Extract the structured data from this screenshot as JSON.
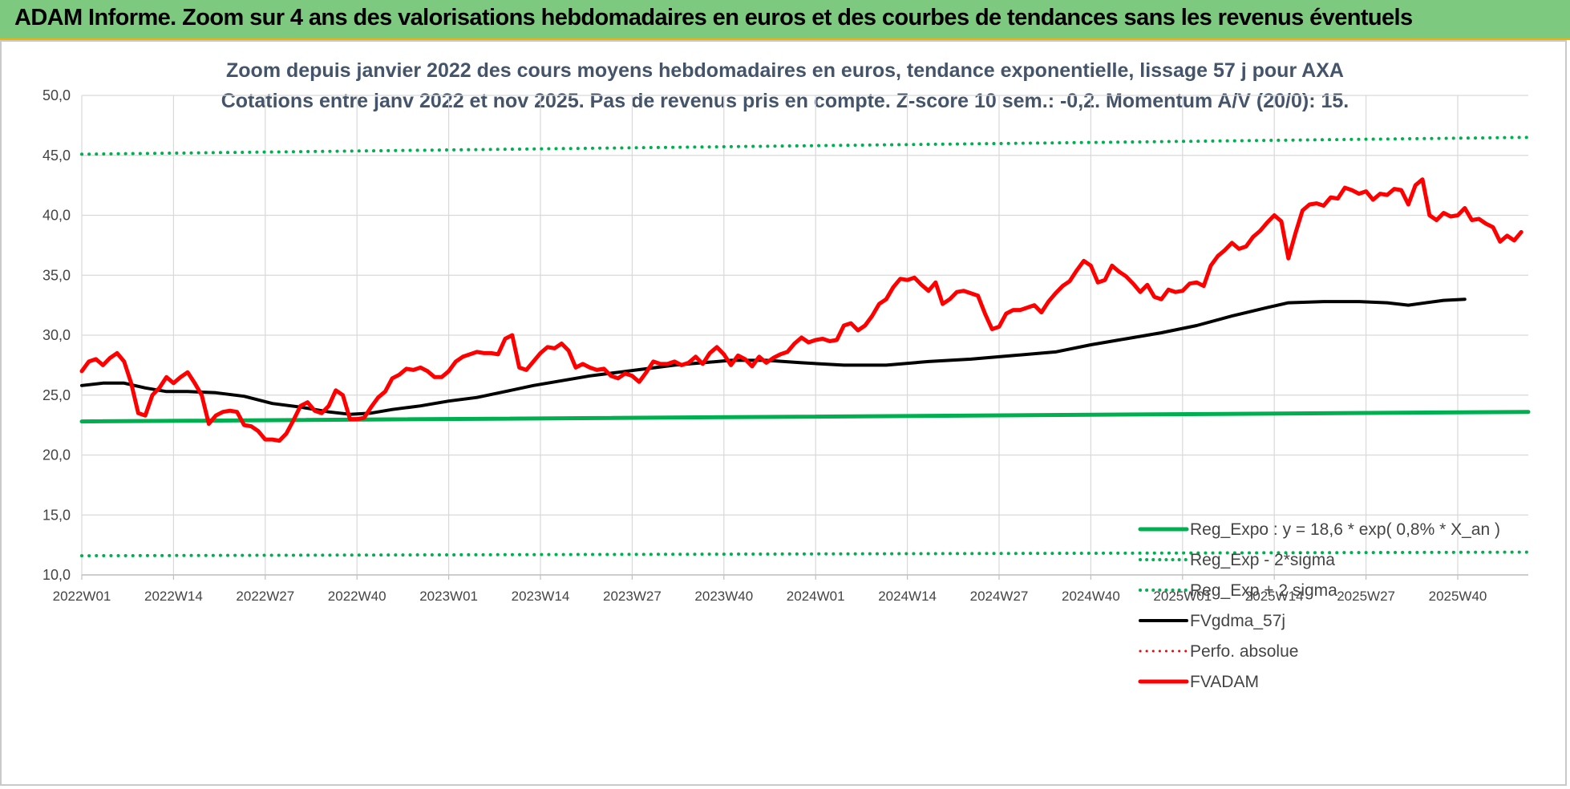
{
  "banner": {
    "title": "ADAM Informe. Zoom sur 4 ans des valorisations hebdomadaires en euros et des courbes de tendances sans les revenus éventuels"
  },
  "chart_data": {
    "type": "line",
    "title_line1": "Zoom depuis janvier 2022 des cours moyens hebdomadaires en euros, tendance exponentielle, lissage 57 j pour AXA",
    "title_line2": "Cotations entre janv 2022 et nov 2025. Pas de revenus pris en compte. Z-score 10 sem.: -0,2. Momentum A/V (20/0): 15.",
    "y_ticks": [
      "10,0",
      "15,0",
      "20,0",
      "25,0",
      "30,0",
      "35,0",
      "40,0",
      "45,0",
      "50,0"
    ],
    "ylim": [
      10,
      50
    ],
    "x_ticks": [
      "2022W01",
      "2022W14",
      "2022W27",
      "2022W40",
      "2023W01",
      "2023W14",
      "2023W27",
      "2023W40",
      "2024W01",
      "2024W14",
      "2024W27",
      "2024W40",
      "2025W01",
      "2025W14",
      "2025W27",
      "2025W40"
    ],
    "grid": true,
    "legend_position": "bottom-right",
    "series": [
      {
        "name": "Reg_Expo : y = 18,6 * exp( 0,8% *  X_an )",
        "color": "#00b050",
        "style": "solid",
        "width": 5,
        "points": [
          [
            0,
            22.8
          ],
          [
            205,
            23.6
          ]
        ]
      },
      {
        "name": "Reg_Exp - 2*sigma",
        "color": "#00b050",
        "style": "dotted",
        "width": 4,
        "points": [
          [
            0,
            11.6
          ],
          [
            205,
            11.9
          ]
        ]
      },
      {
        "name": "Reg_Exp + 2 sigma",
        "color": "#00b050",
        "style": "dotted",
        "width": 4,
        "points": [
          [
            0,
            45.1
          ],
          [
            205,
            46.5
          ]
        ]
      },
      {
        "name": "FVgdma_57j",
        "color": "#000000",
        "style": "solid",
        "width": 4,
        "points": [
          [
            0,
            25.8
          ],
          [
            3,
            26.0
          ],
          [
            6,
            26.0
          ],
          [
            9,
            25.6
          ],
          [
            12,
            25.3
          ],
          [
            15,
            25.3
          ],
          [
            19,
            25.2
          ],
          [
            23,
            24.9
          ],
          [
            27,
            24.3
          ],
          [
            31,
            24.0
          ],
          [
            35,
            23.6
          ],
          [
            38,
            23.4
          ],
          [
            41,
            23.5
          ],
          [
            44,
            23.8
          ],
          [
            48,
            24.1
          ],
          [
            52,
            24.5
          ],
          [
            56,
            24.8
          ],
          [
            60,
            25.3
          ],
          [
            64,
            25.8
          ],
          [
            68,
            26.2
          ],
          [
            72,
            26.6
          ],
          [
            76,
            26.9
          ],
          [
            80,
            27.2
          ],
          [
            84,
            27.5
          ],
          [
            88,
            27.7
          ],
          [
            92,
            27.9
          ],
          [
            97,
            27.9
          ],
          [
            102,
            27.7
          ],
          [
            108,
            27.5
          ],
          [
            114,
            27.5
          ],
          [
            120,
            27.8
          ],
          [
            126,
            28.0
          ],
          [
            132,
            28.3
          ],
          [
            138,
            28.6
          ],
          [
            143,
            29.2
          ],
          [
            148,
            29.7
          ],
          [
            153,
            30.2
          ],
          [
            158,
            30.8
          ],
          [
            163,
            31.6
          ],
          [
            168,
            32.3
          ],
          [
            171,
            32.7
          ],
          [
            176,
            32.8
          ],
          [
            181,
            32.8
          ],
          [
            185,
            32.7
          ],
          [
            188,
            32.5
          ],
          [
            193,
            32.9
          ],
          [
            196,
            33.0
          ]
        ],
        "note": ""
      },
      {
        "name": "Perfo. absolue",
        "color": "#ff0000",
        "style": "dotted",
        "width": 3,
        "points": []
      },
      {
        "name": "FVADAM",
        "color": "#ff0000",
        "style": "solid",
        "width": 5,
        "points": [
          [
            0,
            27.0
          ],
          [
            1,
            27.8
          ],
          [
            2,
            28.0
          ],
          [
            3,
            27.5
          ],
          [
            4,
            28.1
          ],
          [
            5,
            28.5
          ],
          [
            6,
            27.8
          ],
          [
            7,
            26.0
          ],
          [
            8,
            23.5
          ],
          [
            9,
            23.3
          ],
          [
            10,
            25.0
          ],
          [
            11,
            25.6
          ],
          [
            12,
            26.5
          ],
          [
            13,
            26.0
          ],
          [
            14,
            26.5
          ],
          [
            15,
            26.9
          ],
          [
            16,
            26.0
          ],
          [
            17,
            25.0
          ],
          [
            18,
            22.6
          ],
          [
            19,
            23.3
          ],
          [
            20,
            23.6
          ],
          [
            21,
            23.7
          ],
          [
            22,
            23.6
          ],
          [
            23,
            22.5
          ],
          [
            24,
            22.4
          ],
          [
            25,
            22.0
          ],
          [
            26,
            21.3
          ],
          [
            27,
            21.3
          ],
          [
            28,
            21.2
          ],
          [
            29,
            21.8
          ],
          [
            30,
            22.9
          ],
          [
            31,
            24.1
          ],
          [
            32,
            24.4
          ],
          [
            33,
            23.7
          ],
          [
            34,
            23.5
          ],
          [
            35,
            24.1
          ],
          [
            36,
            25.4
          ],
          [
            37,
            25.0
          ],
          [
            38,
            23.0
          ],
          [
            39,
            23.0
          ],
          [
            40,
            23.1
          ],
          [
            41,
            24.0
          ],
          [
            42,
            24.8
          ],
          [
            43,
            25.3
          ],
          [
            44,
            26.4
          ],
          [
            45,
            26.7
          ],
          [
            46,
            27.2
          ],
          [
            47,
            27.1
          ],
          [
            48,
            27.3
          ],
          [
            49,
            27.0
          ],
          [
            50,
            26.5
          ],
          [
            51,
            26.5
          ],
          [
            52,
            27.0
          ],
          [
            53,
            27.8
          ],
          [
            54,
            28.2
          ],
          [
            55,
            28.4
          ],
          [
            56,
            28.6
          ],
          [
            57,
            28.5
          ],
          [
            58,
            28.5
          ],
          [
            59,
            28.4
          ],
          [
            60,
            29.7
          ],
          [
            61,
            30.0
          ],
          [
            62,
            27.3
          ],
          [
            63,
            27.1
          ],
          [
            64,
            27.8
          ],
          [
            65,
            28.5
          ],
          [
            66,
            29.0
          ],
          [
            67,
            28.9
          ],
          [
            68,
            29.3
          ],
          [
            69,
            28.7
          ],
          [
            70,
            27.3
          ],
          [
            71,
            27.6
          ],
          [
            72,
            27.3
          ],
          [
            73,
            27.1
          ],
          [
            74,
            27.2
          ],
          [
            75,
            26.6
          ],
          [
            76,
            26.4
          ],
          [
            77,
            26.8
          ],
          [
            78,
            26.6
          ],
          [
            79,
            26.1
          ],
          [
            80,
            26.9
          ],
          [
            81,
            27.8
          ],
          [
            82,
            27.6
          ],
          [
            83,
            27.6
          ],
          [
            84,
            27.8
          ],
          [
            85,
            27.5
          ],
          [
            86,
            27.7
          ],
          [
            87,
            28.2
          ],
          [
            88,
            27.6
          ],
          [
            89,
            28.5
          ],
          [
            90,
            29.0
          ],
          [
            91,
            28.4
          ],
          [
            92,
            27.5
          ],
          [
            93,
            28.3
          ],
          [
            94,
            28.0
          ],
          [
            95,
            27.4
          ],
          [
            96,
            28.2
          ],
          [
            97,
            27.7
          ],
          [
            98,
            28.1
          ],
          [
            99,
            28.4
          ],
          [
            100,
            28.6
          ],
          [
            101,
            29.3
          ],
          [
            102,
            29.8
          ],
          [
            103,
            29.4
          ],
          [
            104,
            29.6
          ],
          [
            105,
            29.7
          ],
          [
            106,
            29.5
          ],
          [
            107,
            29.6
          ],
          [
            108,
            30.8
          ],
          [
            109,
            31.0
          ],
          [
            110,
            30.4
          ],
          [
            111,
            30.8
          ],
          [
            112,
            31.6
          ],
          [
            113,
            32.6
          ],
          [
            114,
            33.0
          ],
          [
            115,
            34.0
          ],
          [
            116,
            34.7
          ],
          [
            117,
            34.6
          ],
          [
            118,
            34.8
          ],
          [
            119,
            34.2
          ],
          [
            120,
            33.7
          ],
          [
            121,
            34.4
          ],
          [
            122,
            32.6
          ],
          [
            123,
            33.0
          ],
          [
            124,
            33.6
          ],
          [
            125,
            33.7
          ],
          [
            126,
            33.5
          ],
          [
            127,
            33.3
          ],
          [
            128,
            31.8
          ],
          [
            129,
            30.5
          ],
          [
            130,
            30.7
          ],
          [
            131,
            31.8
          ],
          [
            132,
            32.1
          ],
          [
            133,
            32.1
          ],
          [
            134,
            32.3
          ],
          [
            135,
            32.5
          ],
          [
            136,
            31.9
          ],
          [
            137,
            32.8
          ],
          [
            138,
            33.5
          ],
          [
            139,
            34.1
          ],
          [
            140,
            34.5
          ],
          [
            141,
            35.4
          ],
          [
            142,
            36.2
          ],
          [
            143,
            35.8
          ],
          [
            144,
            34.4
          ],
          [
            145,
            34.6
          ],
          [
            146,
            35.8
          ],
          [
            147,
            35.3
          ],
          [
            148,
            34.9
          ],
          [
            149,
            34.3
          ],
          [
            150,
            33.6
          ],
          [
            151,
            34.2
          ],
          [
            152,
            33.2
          ],
          [
            153,
            33.0
          ],
          [
            154,
            33.8
          ],
          [
            155,
            33.6
          ],
          [
            156,
            33.7
          ],
          [
            157,
            34.3
          ],
          [
            158,
            34.4
          ],
          [
            159,
            34.1
          ],
          [
            160,
            35.8
          ],
          [
            161,
            36.6
          ],
          [
            162,
            37.1
          ],
          [
            163,
            37.7
          ],
          [
            164,
            37.2
          ],
          [
            165,
            37.4
          ],
          [
            166,
            38.2
          ],
          [
            167,
            38.7
          ],
          [
            168,
            39.4
          ],
          [
            169,
            40.0
          ],
          [
            170,
            39.5
          ],
          [
            171,
            36.4
          ],
          [
            172,
            38.5
          ],
          [
            173,
            40.4
          ],
          [
            174,
            40.9
          ],
          [
            175,
            41.0
          ],
          [
            176,
            40.8
          ],
          [
            177,
            41.5
          ],
          [
            178,
            41.4
          ],
          [
            179,
            42.3
          ],
          [
            180,
            42.1
          ],
          [
            181,
            41.8
          ],
          [
            182,
            42.0
          ],
          [
            183,
            41.3
          ],
          [
            184,
            41.8
          ],
          [
            185,
            41.7
          ],
          [
            186,
            42.2
          ],
          [
            187,
            42.1
          ],
          [
            188,
            40.9
          ],
          [
            189,
            42.5
          ],
          [
            190,
            43.0
          ],
          [
            191,
            40.0
          ],
          [
            192,
            39.6
          ],
          [
            193,
            40.2
          ],
          [
            194,
            39.9
          ],
          [
            195,
            40.0
          ],
          [
            196,
            40.6
          ],
          [
            197,
            39.6
          ],
          [
            198,
            39.7
          ],
          [
            199,
            39.3
          ],
          [
            200,
            39.0
          ],
          [
            201,
            37.8
          ],
          [
            202,
            38.3
          ],
          [
            203,
            37.9
          ],
          [
            204,
            38.6
          ]
        ]
      }
    ]
  }
}
